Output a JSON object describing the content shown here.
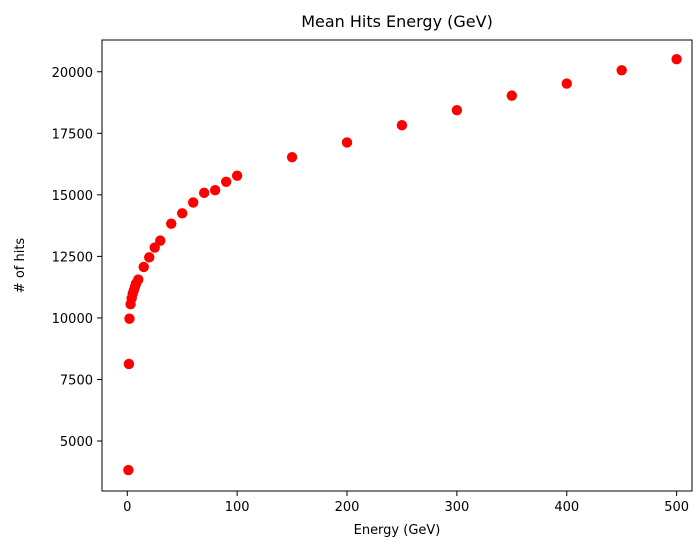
{
  "chart_data": {
    "type": "scatter",
    "title": "Mean Hits Energy (GeV)",
    "xlabel": "Energy (GeV)",
    "ylabel": "# of hits",
    "xlim": [
      -23,
      514
    ],
    "ylim": [
      2970,
      21290
    ],
    "xticks": [
      0,
      100,
      200,
      300,
      400,
      500
    ],
    "yticks": [
      5000,
      7500,
      10000,
      12500,
      15000,
      17500,
      20000
    ],
    "grid": false,
    "marker_color": "#ff0000",
    "points": [
      {
        "x": 1,
        "y": 3820
      },
      {
        "x": 1.5,
        "y": 8130
      },
      {
        "x": 2,
        "y": 9970
      },
      {
        "x": 3,
        "y": 10560
      },
      {
        "x": 4,
        "y": 10800
      },
      {
        "x": 5,
        "y": 10990
      },
      {
        "x": 6,
        "y": 11130
      },
      {
        "x": 7,
        "y": 11270
      },
      {
        "x": 8,
        "y": 11400
      },
      {
        "x": 10,
        "y": 11560
      },
      {
        "x": 15,
        "y": 12070
      },
      {
        "x": 20,
        "y": 12460
      },
      {
        "x": 25,
        "y": 12860
      },
      {
        "x": 30,
        "y": 13140
      },
      {
        "x": 40,
        "y": 13830
      },
      {
        "x": 50,
        "y": 14250
      },
      {
        "x": 60,
        "y": 14690
      },
      {
        "x": 70,
        "y": 15080
      },
      {
        "x": 80,
        "y": 15190
      },
      {
        "x": 90,
        "y": 15530
      },
      {
        "x": 100,
        "y": 15780
      },
      {
        "x": 150,
        "y": 16530
      },
      {
        "x": 200,
        "y": 17130
      },
      {
        "x": 250,
        "y": 17830
      },
      {
        "x": 300,
        "y": 18440
      },
      {
        "x": 350,
        "y": 19030
      },
      {
        "x": 400,
        "y": 19520
      },
      {
        "x": 450,
        "y": 20060
      },
      {
        "x": 500,
        "y": 20510
      }
    ]
  }
}
